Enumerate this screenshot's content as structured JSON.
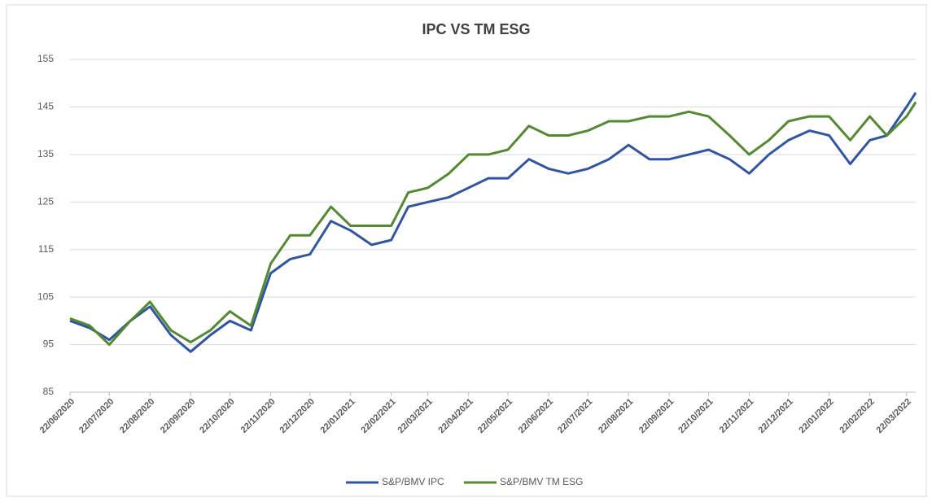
{
  "chart_data": {
    "type": "line",
    "title": "IPC VS TM ESG",
    "x": [
      "22/06/2020",
      "07/07/2020",
      "22/07/2020",
      "07/08/2020",
      "22/08/2020",
      "07/09/2020",
      "22/09/2020",
      "07/10/2020",
      "22/10/2020",
      "07/11/2020",
      "22/11/2020",
      "07/12/2020",
      "22/12/2020",
      "07/01/2021",
      "22/01/2021",
      "07/02/2021",
      "22/02/2021",
      "07/03/2021",
      "22/03/2021",
      "07/04/2021",
      "22/04/2021",
      "07/05/2021",
      "22/05/2021",
      "07/06/2021",
      "22/06/2021",
      "07/07/2021",
      "22/07/2021",
      "07/08/2021",
      "22/08/2021",
      "07/09/2021",
      "22/09/2021",
      "07/10/2021",
      "22/10/2021",
      "07/11/2021",
      "22/11/2021",
      "07/12/2021",
      "22/12/2021",
      "07/01/2022",
      "22/01/2022",
      "07/02/2022",
      "22/02/2022",
      "07/03/2022",
      "22/03/2022",
      "29/03/2022"
    ],
    "series": [
      {
        "name": "S&P/BMV IPC",
        "color": "#2f55a4",
        "values": [
          100,
          98.5,
          96,
          100,
          103,
          97,
          93.5,
          97,
          100,
          98,
          110,
          113,
          114,
          121,
          119,
          116,
          117,
          124,
          125,
          126,
          128,
          130,
          130,
          134,
          132,
          131,
          132,
          134,
          137,
          134,
          134,
          135,
          136,
          134,
          131,
          135,
          138,
          140,
          139,
          133,
          138,
          139,
          145,
          148
        ]
      },
      {
        "name": "S&P/BMV TM ESG",
        "color": "#538a2f",
        "values": [
          100.5,
          99,
          95,
          100,
          104,
          98,
          95.5,
          98,
          102,
          99,
          112,
          118,
          118,
          124,
          120,
          120,
          120,
          127,
          128,
          131,
          135,
          135,
          136,
          141,
          139,
          139,
          140,
          142,
          142,
          143,
          143,
          144,
          143,
          139,
          135,
          138,
          142,
          143,
          143,
          138,
          143,
          139,
          143,
          146
        ]
      }
    ],
    "xlim": [
      "22/06/2020",
      "29/03/2022"
    ],
    "xticks": [
      "22/06/2020",
      "22/07/2020",
      "22/08/2020",
      "22/09/2020",
      "22/10/2020",
      "22/11/2020",
      "22/12/2020",
      "22/01/2021",
      "22/02/2021",
      "22/03/2021",
      "22/04/2021",
      "22/05/2021",
      "22/06/2021",
      "22/07/2021",
      "22/08/2021",
      "22/09/2021",
      "22/10/2021",
      "22/11/2021",
      "22/12/2021",
      "22/01/2022",
      "22/02/2022",
      "22/03/2022"
    ],
    "ylim": [
      85,
      155
    ],
    "yticks": [
      85,
      95,
      105,
      115,
      125,
      135,
      145,
      155
    ],
    "grid": true,
    "legend": "bottom"
  }
}
